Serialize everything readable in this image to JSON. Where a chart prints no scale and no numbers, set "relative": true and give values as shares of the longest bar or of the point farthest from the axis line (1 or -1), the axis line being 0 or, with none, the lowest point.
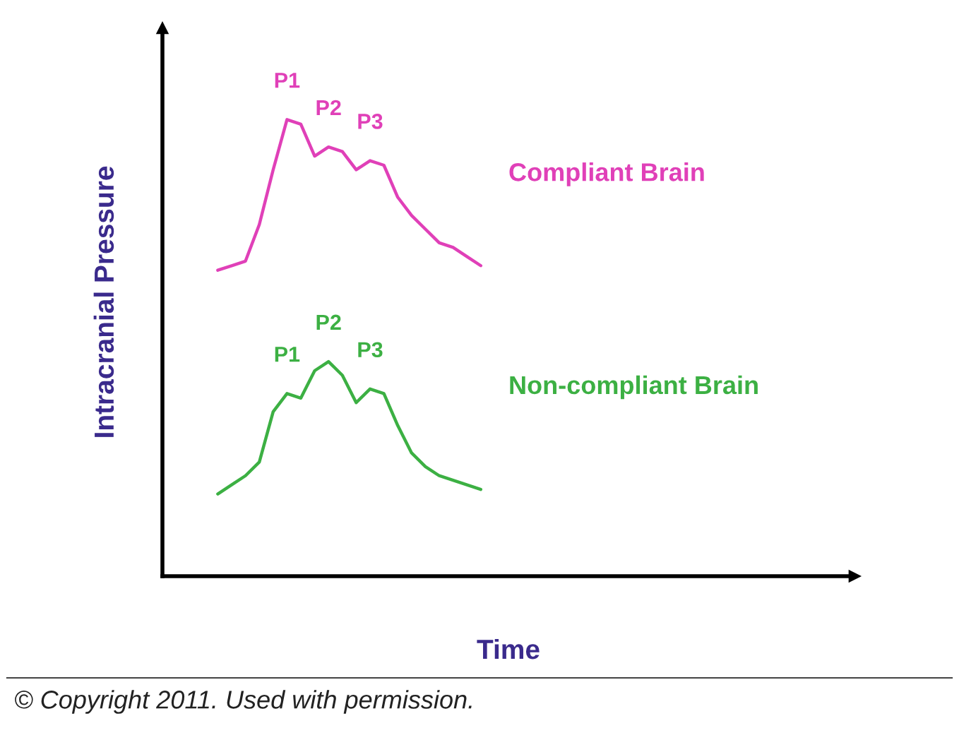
{
  "chart_data": {
    "type": "line",
    "relative": true,
    "tick_labels": false,
    "xlabel": "Time",
    "ylabel": "Intracranial Pressure",
    "categories": [
      null,
      null,
      null,
      null,
      null,
      null,
      null,
      null,
      null,
      null,
      null,
      null,
      null,
      null,
      null,
      null,
      null,
      null,
      null,
      null
    ],
    "series": [
      {
        "name": "Compliant Brain",
        "color": "#e040b8",
        "values": [
          0.67,
          0.68,
          0.69,
          0.77,
          0.89,
          1.0,
          0.99,
          0.92,
          0.94,
          0.93,
          0.89,
          0.91,
          0.9,
          0.83,
          0.79,
          0.76,
          0.73,
          0.72,
          0.7,
          0.68
        ]
      },
      {
        "name": "Non-compliant Brain",
        "color": "#3cb043",
        "values": [
          0.18,
          0.2,
          0.22,
          0.25,
          0.36,
          0.4,
          0.39,
          0.45,
          0.47,
          0.44,
          0.38,
          0.41,
          0.4,
          0.33,
          0.27,
          0.24,
          0.22,
          0.21,
          0.2,
          0.19
        ]
      }
    ],
    "annotations": [
      "P1",
      "P2",
      "P3",
      "P1",
      "P2",
      "P3",
      "© Copyright 2011. Used with permission."
    ]
  }
}
